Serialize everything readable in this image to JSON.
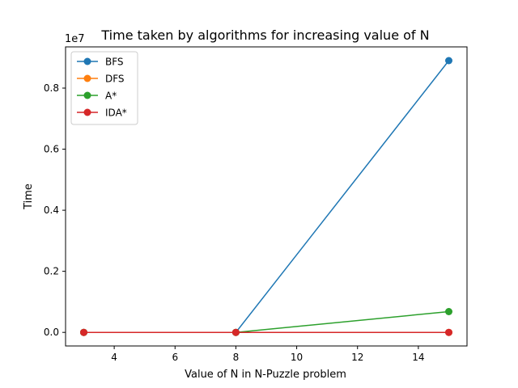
{
  "chart_data": {
    "type": "line",
    "title": "Time taken by algorithms for increasing value of N",
    "xlabel": "Value of N in N-Puzzle problem",
    "ylabel": "Time",
    "y_offset_label": "1e7",
    "x": [
      3,
      8,
      15
    ],
    "xlim": [
      2.4,
      15.6
    ],
    "ylim": [
      -0.0445,
      0.935
    ],
    "y_scale_note": "values in units of 1e7",
    "x_ticks": [
      4,
      6,
      8,
      10,
      12,
      14
    ],
    "x_tick_labels": [
      "4",
      "6",
      "8",
      "10",
      "12",
      "14"
    ],
    "y_ticks": [
      0.0,
      0.2,
      0.4,
      0.6,
      0.8
    ],
    "y_tick_labels": [
      "0.0",
      "0.2",
      "0.4",
      "0.6",
      "0.8"
    ],
    "grid": false,
    "legend_position": "top-left",
    "series": [
      {
        "name": "BFS",
        "color": "#1f77b4",
        "values": [
          0.0,
          0.0,
          0.89
        ]
      },
      {
        "name": "DFS",
        "color": "#ff7f0e",
        "values": [
          0.0,
          0.0,
          0.0
        ]
      },
      {
        "name": "A*",
        "color": "#2ca02c",
        "values": [
          0.0,
          0.0,
          0.068
        ]
      },
      {
        "name": "IDA*",
        "color": "#d62728",
        "values": [
          0.0,
          0.0,
          0.0
        ]
      }
    ]
  }
}
